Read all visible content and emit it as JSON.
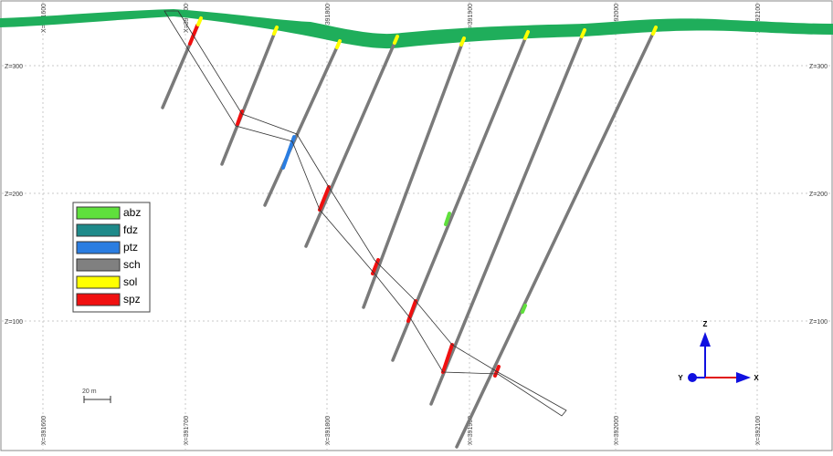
{
  "grid": {
    "x_labels": [
      "X=391600",
      "X=391700",
      "X=391800",
      "X=391900",
      "X=392000",
      "X=392100"
    ],
    "z_labels": [
      "Z=300",
      "Z=200",
      "Z=100"
    ]
  },
  "legend": [
    {
      "label": "abz",
      "color": "#5fe03c"
    },
    {
      "label": "fdz",
      "color": "#1e8a8a"
    },
    {
      "label": "ptz",
      "color": "#2a7de1"
    },
    {
      "label": "sch",
      "color": "#808080"
    },
    {
      "label": "sol",
      "color": "#ffff00"
    },
    {
      "label": "spz",
      "color": "#f01010"
    }
  ],
  "scale_bar": "20 m",
  "axes": {
    "z": "Z",
    "y": "Y",
    "x": "X"
  }
}
